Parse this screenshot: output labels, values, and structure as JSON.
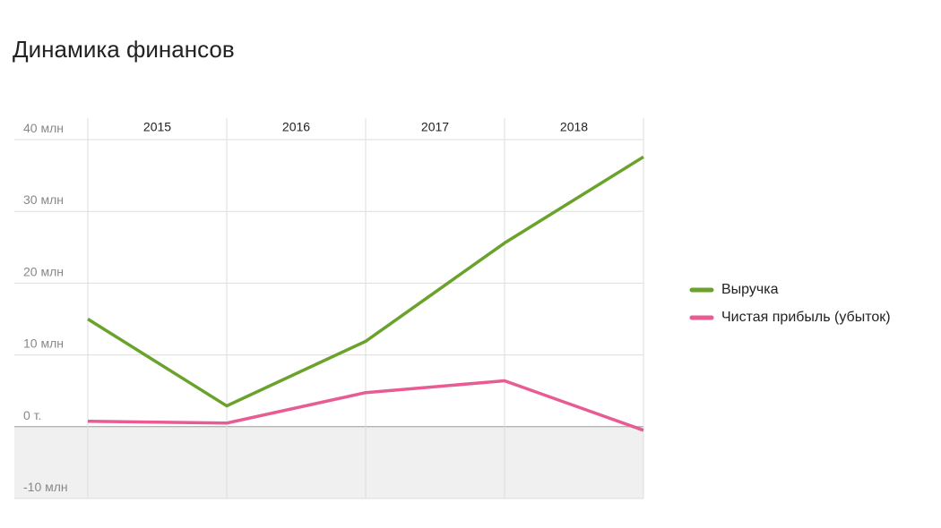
{
  "chart_data": {
    "type": "line",
    "title": "Динамика финансов",
    "categories": [
      "2015",
      "2016",
      "2017",
      "2018",
      null
    ],
    "series": [
      {
        "name": "Выручка",
        "color": "#6aa22c",
        "values": [
          15,
          2.9,
          11.9,
          25.6,
          37.6
        ]
      },
      {
        "name": "Чистая прибыль (убыток)",
        "color": "#e85b93",
        "values": [
          0.75,
          0.5,
          4.75,
          6.4,
          -0.5
        ]
      }
    ],
    "ylim": [
      -10,
      43
    ],
    "yticks": [
      {
        "value": -10,
        "label": "-10 млн"
      },
      {
        "value": 0,
        "label": "0 т."
      },
      {
        "value": 10,
        "label": "10 млн"
      },
      {
        "value": 20,
        "label": "20 млн"
      },
      {
        "value": 30,
        "label": "30 млн"
      },
      {
        "value": 40,
        "label": "40 млн"
      }
    ],
    "grid": true,
    "legend": "right"
  }
}
